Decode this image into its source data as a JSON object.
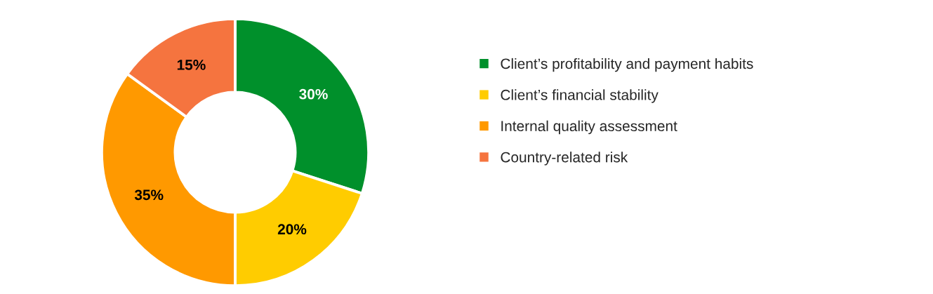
{
  "chart_data": {
    "type": "donut",
    "categories": [
      "Client’s profitability and payment habits",
      "Client’s financial stability",
      "Internal quality assessment",
      "Country-related risk"
    ],
    "values": [
      30,
      20,
      35,
      15
    ],
    "colors": [
      "#00902b",
      "#ffcc00",
      "#ff9900",
      "#f5743f"
    ],
    "value_labels": [
      "30%",
      "20%",
      "35%",
      "15%"
    ],
    "legend": "right"
  }
}
